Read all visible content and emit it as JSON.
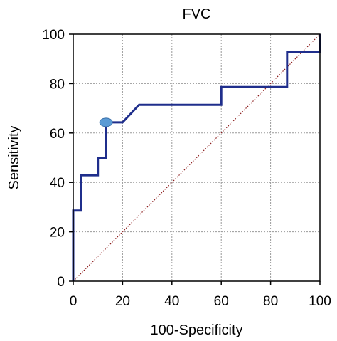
{
  "chart_data": {
    "type": "line",
    "title": "FVC",
    "xlabel": "100-Specificity",
    "ylabel": "Sensitivity",
    "xlim": [
      0,
      100
    ],
    "ylim": [
      0,
      100
    ],
    "x_ticks": [
      0,
      20,
      40,
      60,
      80,
      100
    ],
    "y_ticks": [
      0,
      20,
      40,
      60,
      80,
      100
    ],
    "grid": true,
    "series": [
      {
        "values_x": [
          0,
          0,
          3.3,
          3.3,
          10,
          10,
          13.3,
          13.3,
          20,
          26.7,
          60,
          60,
          86.7,
          86.7,
          100,
          100
        ],
        "values_y": [
          0,
          28.6,
          28.6,
          42.9,
          42.9,
          50,
          50,
          64.3,
          64.3,
          71.4,
          71.4,
          78.6,
          78.6,
          92.9,
          92.9,
          100
        ],
        "color": "#1f2e8c"
      }
    ],
    "reference_line": {
      "x": [
        0,
        100
      ],
      "y": [
        0,
        100
      ],
      "color": "#8b1a1a",
      "style": "dotted"
    },
    "highlight_point": {
      "x": 13.3,
      "y": 64.3,
      "color": "#5b9bd5"
    }
  }
}
